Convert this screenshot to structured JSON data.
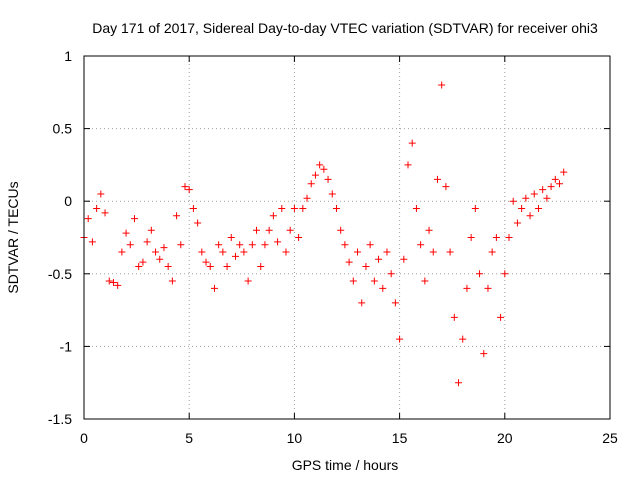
{
  "chart_data": {
    "type": "scatter",
    "title": "Day 171 of 2017, Sidereal Day-to-day VTEC variation (SDTVAR) for receiver ohi3",
    "xlabel": "GPS time / hours",
    "ylabel": "SDTVAR / TECUs",
    "xlim": [
      0,
      25
    ],
    "ylim": [
      -1.5,
      1
    ],
    "xticks": [
      0,
      5,
      10,
      15,
      20,
      25
    ],
    "yticks": [
      -1.5,
      -1,
      -0.5,
      0,
      0.5,
      1
    ],
    "xtick_labels": [
      "0",
      "5",
      "10",
      "15",
      "20",
      "25"
    ],
    "ytick_labels": [
      "-1.5",
      "-1",
      "-0.5",
      "0",
      "0.5",
      "1"
    ],
    "grid": true,
    "marker": "plus",
    "color": "#ff0000",
    "series": [
      {
        "name": "sdtvar",
        "x": [
          0.0,
          0.2,
          0.4,
          0.6,
          0.8,
          1.0,
          1.2,
          1.4,
          1.6,
          1.8,
          2.0,
          2.2,
          2.4,
          2.6,
          2.8,
          3.0,
          3.2,
          3.4,
          3.6,
          3.8,
          4.0,
          4.2,
          4.4,
          4.6,
          4.8,
          5.0,
          5.2,
          5.4,
          5.6,
          5.8,
          6.0,
          6.2,
          6.4,
          6.6,
          6.8,
          7.0,
          7.2,
          7.4,
          7.6,
          7.8,
          8.0,
          8.2,
          8.4,
          8.6,
          8.8,
          9.0,
          9.2,
          9.4,
          9.6,
          9.8,
          10.0,
          10.2,
          10.4,
          10.6,
          10.8,
          11.0,
          11.2,
          11.4,
          11.6,
          11.8,
          12.0,
          12.2,
          12.4,
          12.6,
          12.8,
          13.0,
          13.2,
          13.4,
          13.6,
          13.8,
          14.0,
          14.2,
          14.4,
          14.6,
          14.8,
          15.0,
          15.2,
          15.4,
          15.6,
          15.8,
          16.0,
          16.2,
          16.4,
          16.6,
          16.8,
          17.0,
          17.2,
          17.4,
          17.6,
          17.8,
          18.0,
          18.2,
          18.4,
          18.6,
          18.8,
          19.0,
          19.2,
          19.4,
          19.6,
          19.8,
          20.0,
          20.2,
          20.4,
          20.6,
          20.8,
          21.0,
          21.2,
          21.4,
          21.6,
          21.8,
          22.0,
          22.2,
          22.4,
          22.6,
          22.8
        ],
        "y": [
          -0.25,
          -0.12,
          -0.28,
          -0.05,
          0.05,
          -0.08,
          -0.55,
          -0.56,
          -0.58,
          -0.35,
          -0.22,
          -0.3,
          -0.12,
          -0.45,
          -0.42,
          -0.28,
          -0.2,
          -0.35,
          -0.4,
          -0.32,
          -0.45,
          -0.55,
          -0.1,
          -0.3,
          0.1,
          0.08,
          -0.05,
          -0.15,
          -0.35,
          -0.42,
          -0.45,
          -0.6,
          -0.3,
          -0.35,
          -0.45,
          -0.25,
          -0.38,
          -0.3,
          -0.35,
          -0.55,
          -0.3,
          -0.2,
          -0.45,
          -0.3,
          -0.2,
          -0.1,
          -0.28,
          -0.05,
          -0.35,
          -0.2,
          -0.05,
          -0.25,
          -0.05,
          0.02,
          0.12,
          0.18,
          0.25,
          0.22,
          0.15,
          0.05,
          -0.05,
          -0.2,
          -0.3,
          -0.42,
          -0.55,
          -0.35,
          -0.7,
          -0.45,
          -0.3,
          -0.55,
          -0.4,
          -0.6,
          -0.35,
          -0.5,
          -0.7,
          -0.95,
          -0.4,
          0.25,
          0.4,
          -0.05,
          -0.3,
          -0.55,
          -0.2,
          -0.35,
          0.15,
          0.8,
          0.1,
          -0.35,
          -0.8,
          -1.25,
          -0.95,
          -0.6,
          -0.25,
          -0.05,
          -0.5,
          -1.05,
          -0.6,
          -0.35,
          -0.25,
          -0.8,
          -0.5,
          -0.25,
          0.0,
          -0.15,
          -0.05,
          0.02,
          -0.1,
          0.05,
          -0.05,
          0.08,
          0.02,
          0.1,
          0.15,
          0.12,
          0.2
        ]
      }
    ]
  }
}
